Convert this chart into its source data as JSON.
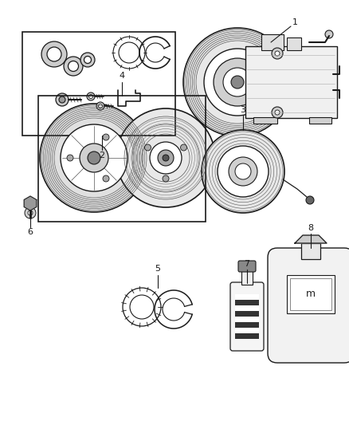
{
  "bg_color": "#ffffff",
  "fig_width": 4.38,
  "fig_height": 5.33,
  "dpi": 100,
  "line_color": "#1a1a1a",
  "gray_light": "#cccccc",
  "gray_mid": "#999999",
  "gray_dark": "#555555"
}
